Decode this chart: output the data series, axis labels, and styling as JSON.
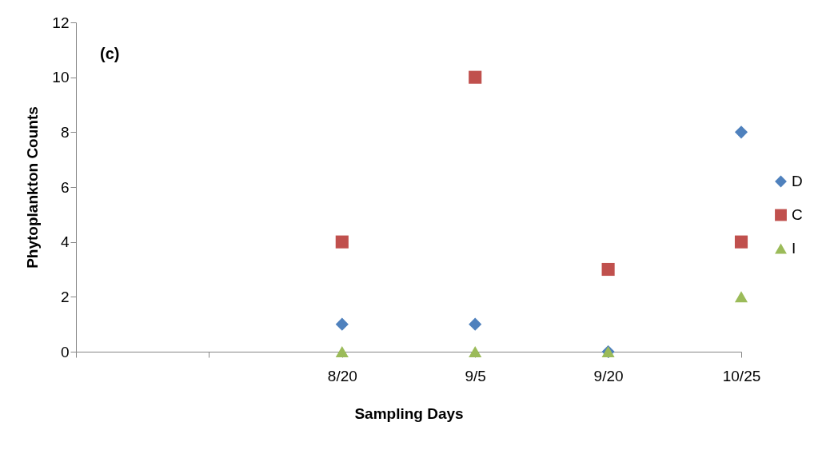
{
  "chart_data": {
    "type": "scatter",
    "annotations": [
      "(c)"
    ],
    "xlabel": "Sampling Days",
    "ylabel": "Phytoplankton Counts",
    "categories": [
      null,
      null,
      "8/20",
      "9/5",
      "9/20",
      "10/25"
    ],
    "series": [
      {
        "name": "D",
        "color": "#4f81bd",
        "marker": "diamond",
        "values": [
          null,
          null,
          1,
          1,
          0,
          8
        ]
      },
      {
        "name": "C",
        "color": "#c0504d",
        "marker": "square",
        "values": [
          null,
          null,
          4,
          10,
          3,
          4
        ]
      },
      {
        "name": "I",
        "color": "#9bbb59",
        "marker": "triangle",
        "values": [
          null,
          null,
          0,
          0,
          0,
          2
        ]
      }
    ],
    "ylim": [
      0,
      12
    ],
    "yticks": [
      0,
      2,
      4,
      6,
      8,
      10,
      12
    ],
    "grid": false,
    "legend": "right"
  }
}
